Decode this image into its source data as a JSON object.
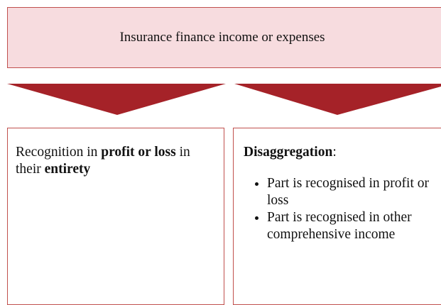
{
  "header": {
    "title": "Insurance finance income or expenses"
  },
  "left_box": {
    "segments": [
      "Recognition in ",
      "profit or loss",
      " in their ",
      "entirety"
    ]
  },
  "right_box": {
    "heading": [
      "Disaggregation",
      ":"
    ],
    "bullets": [
      "Part is recognised in profit or loss",
      "Part is recognised in other comprehensive income"
    ]
  }
}
